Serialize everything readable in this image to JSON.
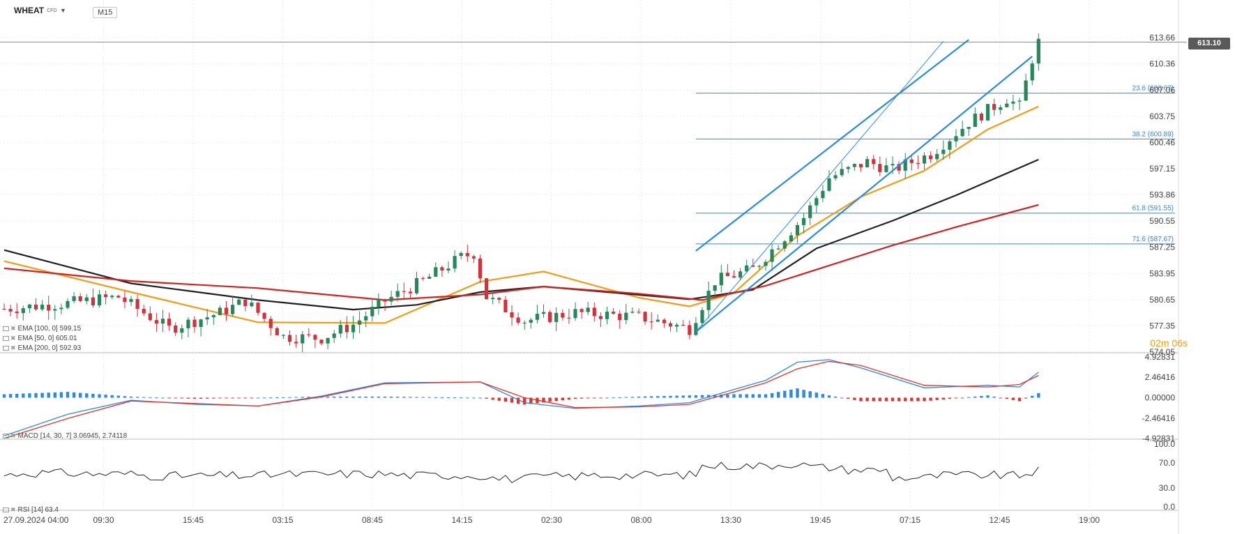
{
  "header": {
    "symbol": "WHEAT",
    "symbol_type": "CFD",
    "timeframe": "M15"
  },
  "last_price": "613.10",
  "countdown": "02m 06s",
  "indicators": {
    "ema100": "EMA [100, 0] 599.15",
    "ema50": "EMA [50, 0] 605.01",
    "ema200": "EMA [200, 0] 592.93",
    "macd": "MACD [14, 30, 7] 3.06945, 2.74118",
    "rsi": "RSI [14] 63.4"
  },
  "colors": {
    "bull": "#26875a",
    "bear": "#d1323b",
    "ema50": "#f39c12",
    "ema100": "#1f1f1f",
    "ema200": "#d0221f",
    "trend": "#2a8be0",
    "fib": "#2a8be0",
    "macd": "#2a8be0",
    "signal": "#e0342c",
    "grid": "#ececec",
    "axis_text": "#444444"
  },
  "chart_data": {
    "type": "candlestick",
    "instrument": "WHEAT",
    "price_axis": {
      "ticks": [
        "613.66",
        "610.36",
        "607.06",
        "603.75",
        "600.46",
        "597.15",
        "593.86",
        "590.55",
        "587.25",
        "583.95",
        "580.65",
        "577.35",
        "574.05"
      ],
      "range": [
        574.05,
        613.66
      ]
    },
    "time_axis": {
      "labels": [
        "27.09.2024  04:00",
        "09:30",
        "15:45",
        "03:15",
        "08:45",
        "14:15",
        "02:30",
        "08:00",
        "13:30",
        "19:45",
        "07:15",
        "12:45",
        "19:00"
      ]
    },
    "fibonacci": [
      {
        "label": "23.6 (606.67)",
        "value": 606.67
      },
      {
        "label": "38.2 (600.89)",
        "value": 600.89
      },
      {
        "label": "61.8 (591.55)",
        "value": 591.55
      },
      {
        "label": "71.6 (587.67)",
        "value": 587.67
      }
    ],
    "trend_channel": {
      "upper": [
        [
          109,
          586.8
        ],
        [
          152,
          613.4
        ]
      ],
      "lower": [
        [
          109,
          576.6
        ],
        [
          162,
          611.3
        ]
      ],
      "mid": [
        [
          109,
          576.6
        ],
        [
          148,
          613.2
        ]
      ]
    },
    "ema": [
      {
        "name": "EMA 50",
        "values": [
          [
            0,
            585.5
          ],
          [
            20,
            581.6
          ],
          [
            40,
            577.8
          ],
          [
            60,
            577.7
          ],
          [
            75,
            582.9
          ],
          [
            85,
            584.2
          ],
          [
            100,
            580.9
          ],
          [
            108,
            579.8
          ],
          [
            115,
            581.5
          ],
          [
            125,
            588.7
          ],
          [
            135,
            593.6
          ],
          [
            145,
            596.9
          ],
          [
            155,
            602.1
          ],
          [
            163,
            605.0
          ]
        ]
      },
      {
        "name": "EMA 100",
        "values": [
          [
            0,
            586.9
          ],
          [
            20,
            582.7
          ],
          [
            40,
            580.6
          ],
          [
            55,
            579.4
          ],
          [
            65,
            580.0
          ],
          [
            75,
            581.6
          ],
          [
            85,
            582.3
          ],
          [
            95,
            581.6
          ],
          [
            108,
            580.7
          ],
          [
            118,
            581.9
          ],
          [
            128,
            587.1
          ],
          [
            140,
            590.6
          ],
          [
            150,
            593.8
          ],
          [
            163,
            598.3
          ]
        ]
      },
      {
        "name": "EMA 200",
        "values": [
          [
            0,
            584.6
          ],
          [
            20,
            583.0
          ],
          [
            40,
            582.1
          ],
          [
            60,
            580.6
          ],
          [
            75,
            581.3
          ],
          [
            85,
            582.3
          ],
          [
            100,
            581.4
          ],
          [
            110,
            580.6
          ],
          [
            120,
            582.4
          ],
          [
            140,
            587.5
          ],
          [
            150,
            589.8
          ],
          [
            163,
            592.6
          ]
        ]
      }
    ],
    "macd": {
      "ticks": [
        "4.92831",
        "2.46416",
        "0.00000",
        "-2.46416",
        "-4.92831"
      ],
      "range": [
        -4.92831,
        4.92831
      ],
      "macd_line": [
        [
          0,
          -4.6
        ],
        [
          10,
          -2.0
        ],
        [
          20,
          -0.3
        ],
        [
          30,
          -0.8
        ],
        [
          40,
          -1.0
        ],
        [
          50,
          0.2
        ],
        [
          60,
          1.8
        ],
        [
          75,
          1.9
        ],
        [
          82,
          -0.6
        ],
        [
          90,
          -1.3
        ],
        [
          100,
          -1.0
        ],
        [
          108,
          -0.6
        ],
        [
          115,
          1.0
        ],
        [
          120,
          2.1
        ],
        [
          125,
          4.3
        ],
        [
          130,
          4.6
        ],
        [
          135,
          3.6
        ],
        [
          145,
          1.2
        ],
        [
          155,
          1.5
        ],
        [
          160,
          1.3
        ],
        [
          163,
          3.1
        ]
      ],
      "signal_line": [
        [
          0,
          -4.9
        ],
        [
          10,
          -2.5
        ],
        [
          20,
          -0.4
        ],
        [
          30,
          -0.7
        ],
        [
          40,
          -1.0
        ],
        [
          50,
          0.1
        ],
        [
          60,
          1.7
        ],
        [
          75,
          1.9
        ],
        [
          82,
          0.0
        ],
        [
          90,
          -1.2
        ],
        [
          100,
          -1.1
        ],
        [
          108,
          -0.8
        ],
        [
          115,
          0.7
        ],
        [
          120,
          1.8
        ],
        [
          125,
          3.5
        ],
        [
          130,
          4.4
        ],
        [
          135,
          3.9
        ],
        [
          145,
          1.5
        ],
        [
          155,
          1.3
        ],
        [
          160,
          1.6
        ],
        [
          163,
          2.7
        ]
      ]
    },
    "rsi": {
      "ticks": [
        "100.0",
        "70.0",
        "30.0",
        "0.0"
      ],
      "range": [
        0,
        100
      ],
      "value": 63.4
    }
  }
}
